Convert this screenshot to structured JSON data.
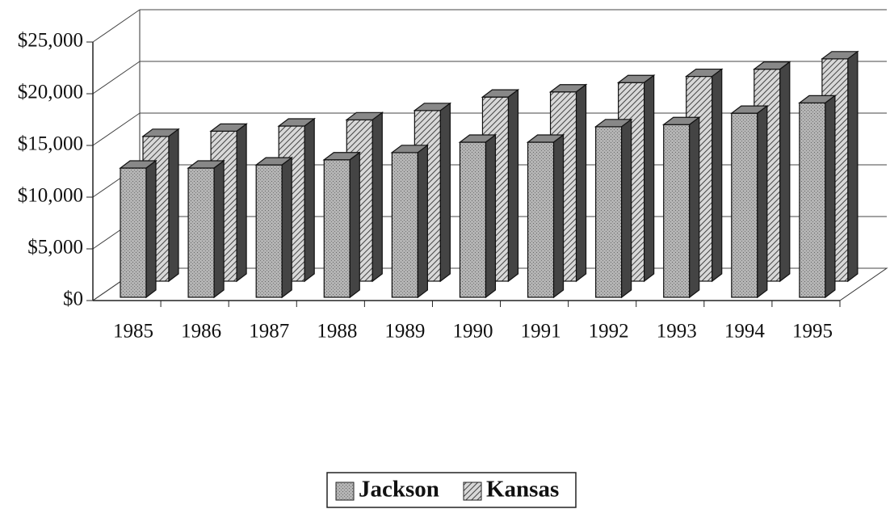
{
  "chart_data": {
    "type": "bar3d",
    "categories": [
      "1985",
      "1986",
      "1987",
      "1988",
      "1989",
      "1990",
      "1991",
      "1992",
      "1993",
      "1994",
      "1995"
    ],
    "series": [
      {
        "name": "Jackson",
        "color": "#a8a8a8",
        "values": [
          12500,
          12500,
          12800,
          13300,
          14000,
          15000,
          15000,
          16500,
          16700,
          17800,
          18800
        ]
      },
      {
        "name": "Kansas",
        "color": "#9a9a9a",
        "values": [
          14000,
          14500,
          15000,
          15600,
          16500,
          17800,
          18300,
          19200,
          19800,
          20500,
          21500
        ]
      }
    ],
    "ylim": [
      0,
      25000
    ],
    "yticks": [
      {
        "value": 0,
        "label": "$0"
      },
      {
        "value": 5000,
        "label": "$5,000"
      },
      {
        "value": 10000,
        "label": "$10,000"
      },
      {
        "value": 15000,
        "label": "$15,000"
      },
      {
        "value": 20000,
        "label": "$20,000"
      },
      {
        "value": 25000,
        "label": "$25,000"
      }
    ],
    "grid": true,
    "legend": "bottom"
  }
}
